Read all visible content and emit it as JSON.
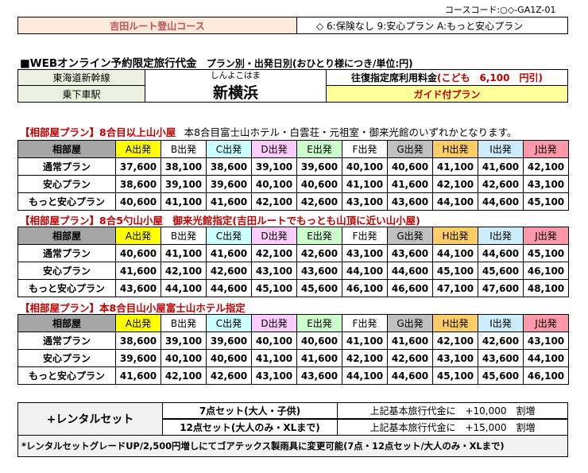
{
  "course_code": "コースコード:○◇-GA1Z-01",
  "header": {
    "course_name": "吉田ルート登山コース",
    "options": "◇ 6:保険なし 9:安心プラン A:もっと安心プラン"
  },
  "pricing_title": {
    "main": "■WEBオンライン予約限定旅行代金",
    "sub": "プラン別・出発日別(おひとり様につき/単位:円)"
  },
  "station": {
    "line": "東海道新幹線",
    "label": "乗下車駅",
    "reading": "しんよこはま",
    "name": "新横浜",
    "fee_label": "往復指定席利用料金",
    "fee_child": "(こども　6,100　円引)",
    "guide": "ガイド付プラン"
  },
  "departures": [
    {
      "label": "A出発",
      "color": "#ffff00"
    },
    {
      "label": "B出発",
      "color": "#ffffff"
    },
    {
      "label": "C出発",
      "color": "#ccffff"
    },
    {
      "label": "D出発",
      "color": "#ffccff"
    },
    {
      "label": "E出発",
      "color": "#ccffcc"
    },
    {
      "label": "F出発",
      "color": "#ffffff"
    },
    {
      "label": "G出発",
      "color": "#c0c0c0"
    },
    {
      "label": "H出発",
      "color": "#ffcc66"
    },
    {
      "label": "I出発",
      "color": "#ccecff"
    },
    {
      "label": "J出発",
      "color": "#ff99aa"
    }
  ],
  "sections": [
    {
      "title": "【相部屋プラン】8合目以上山小屋",
      "note": "本8合目富士山ホテル・白雲荘・元祖室・御来光館のいずれかとなります。",
      "header_label": "相部屋",
      "rows": [
        {
          "plan": "通常プラン",
          "prices": [
            "37,600",
            "38,100",
            "38,600",
            "39,100",
            "39,600",
            "40,100",
            "40,600",
            "41,100",
            "41,600",
            "42,100"
          ]
        },
        {
          "plan": "安心プラン",
          "prices": [
            "38,600",
            "39,100",
            "39,600",
            "40,100",
            "40,600",
            "41,100",
            "41,600",
            "42,100",
            "42,600",
            "43,100"
          ]
        },
        {
          "plan": "もっと安心プラン",
          "prices": [
            "40,600",
            "41,100",
            "41,600",
            "42,100",
            "42,600",
            "43,100",
            "43,600",
            "44,100",
            "44,600",
            "45,100"
          ]
        }
      ]
    },
    {
      "title": "【相部屋プラン】8合5勺山小屋　御来光館指定(吉田ルートでもっとも山頂に近い山小屋)",
      "note": "",
      "header_label": "相部屋",
      "rows": [
        {
          "plan": "通常プラン",
          "prices": [
            "40,600",
            "41,100",
            "41,600",
            "42,100",
            "42,600",
            "43,100",
            "43,600",
            "44,100",
            "44,600",
            "45,100"
          ]
        },
        {
          "plan": "安心プラン",
          "prices": [
            "41,600",
            "42,100",
            "42,600",
            "43,100",
            "43,600",
            "44,100",
            "44,600",
            "45,100",
            "45,600",
            "46,100"
          ]
        },
        {
          "plan": "もっと安心プラン",
          "prices": [
            "43,600",
            "44,100",
            "44,600",
            "45,100",
            "45,600",
            "46,100",
            "46,600",
            "47,100",
            "47,600",
            "48,100"
          ]
        }
      ]
    },
    {
      "title": "【相部屋プラン】本8合目山小屋富士山ホテル指定",
      "note": "",
      "header_label": "相部屋",
      "rows": [
        {
          "plan": "通常プラン",
          "prices": [
            "38,600",
            "39,100",
            "39,600",
            "40,100",
            "40,600",
            "41,100",
            "41,600",
            "42,100",
            "42,600",
            "43,100"
          ]
        },
        {
          "plan": "安心プラン",
          "prices": [
            "39,600",
            "40,100",
            "40,600",
            "41,100",
            "41,600",
            "42,100",
            "42,600",
            "43,100",
            "43,600",
            "44,100"
          ]
        },
        {
          "plan": "もっと安心プラン",
          "prices": [
            "41,600",
            "42,100",
            "42,600",
            "43,100",
            "43,600",
            "44,100",
            "44,600",
            "45,100",
            "45,600",
            "46,100"
          ]
        }
      ]
    }
  ],
  "rental": {
    "title": "+レンタルセット",
    "set7": "7点セット(大人・子供)",
    "set12": "12点セット(大人のみ・XLまで)",
    "add7": "上記基本旅行代金に　+10,000　割増",
    "add12": "上記基本旅行代金に　+15,000　割増",
    "footnote": "*レンタルセットグレードUP/2,500円増しにてゴアテックス製雨具に変更可能(7点・12点セット/大人のみ・XLまで)"
  }
}
